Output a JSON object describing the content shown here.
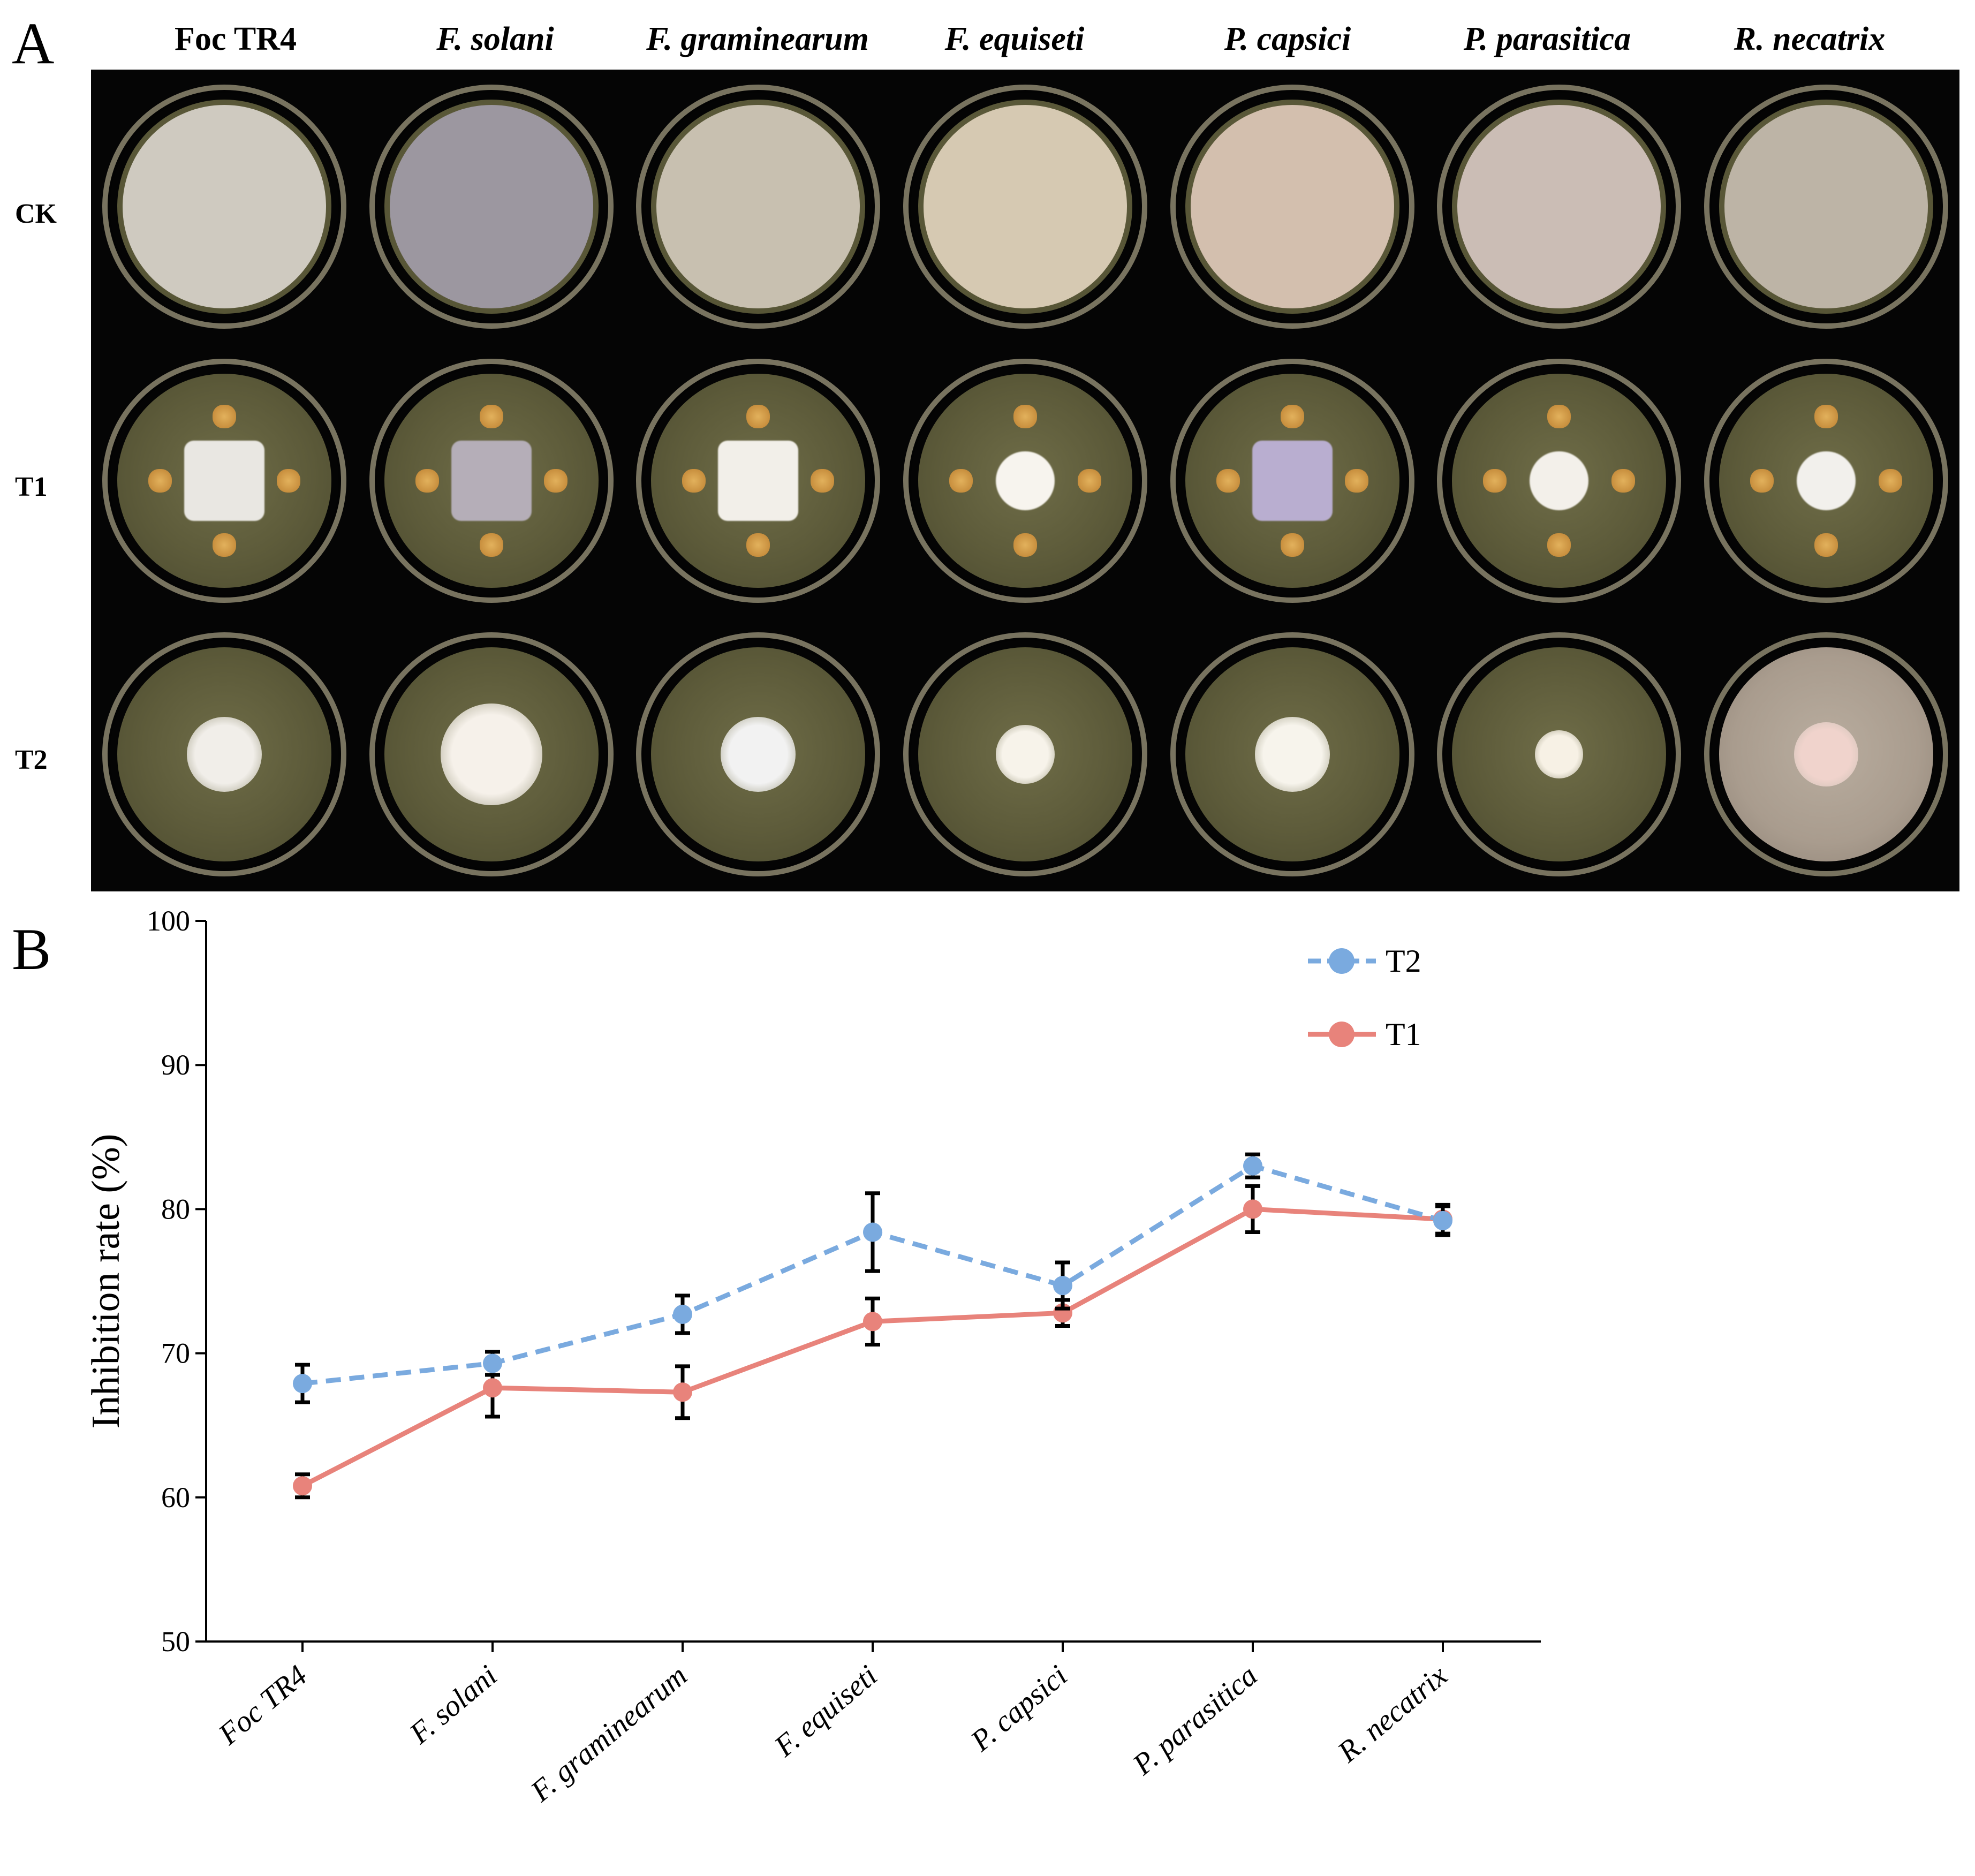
{
  "panel_a": {
    "letter": "A",
    "columns": [
      "Foc TR4",
      "F. solani",
      "F. graminearum",
      "F. equiseti",
      "P. capsici",
      "P. parasitica",
      "R. necatrix"
    ],
    "rows": [
      "CK",
      "T1",
      "T2"
    ]
  },
  "panel_b": {
    "letter": "B"
  },
  "chart_data": {
    "type": "line",
    "categories": [
      "Foc TR4",
      "F. solani",
      "F. graminearum",
      "F. equiseti",
      "P. capsici",
      "P. parasitica",
      "R. necatrix"
    ],
    "series": [
      {
        "name": "T2",
        "color": "#7aaadf",
        "style": "dashed",
        "values": [
          67.9,
          69.3,
          72.7,
          78.4,
          74.7,
          83.0,
          79.2
        ],
        "errors": [
          1.3,
          0.8,
          1.3,
          2.7,
          1.6,
          0.8,
          1.0
        ]
      },
      {
        "name": "T1",
        "color": "#e8837b",
        "style": "solid",
        "values": [
          60.8,
          67.6,
          67.3,
          72.2,
          72.8,
          80.0,
          79.3
        ],
        "errors": [
          0.8,
          2.0,
          1.8,
          1.6,
          0.9,
          1.6,
          1.0
        ]
      }
    ],
    "title": "",
    "xlabel": "",
    "ylabel": "Inhibition rate (%)",
    "ylim": [
      50,
      100
    ],
    "yticks": [
      50,
      60,
      70,
      80,
      90,
      100
    ],
    "legend_position": "top-right"
  }
}
